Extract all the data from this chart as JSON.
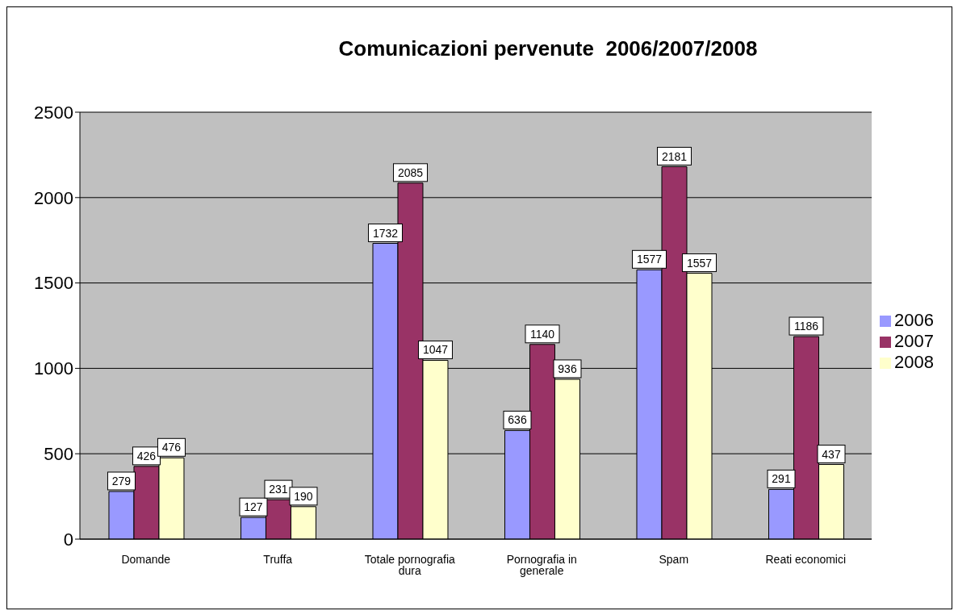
{
  "chart_data": {
    "type": "bar",
    "title": "Comunicazioni pervenute  2006/2007/2008",
    "categories": [
      "Domande",
      "Truffa",
      "Totale pornografia dura",
      "Pornografia in generale",
      "Spam",
      "Reati economici"
    ],
    "series": [
      {
        "name": "2006",
        "color": "#9999ff",
        "values": [
          279,
          127,
          1732,
          636,
          1577,
          291
        ]
      },
      {
        "name": "2007",
        "color": "#993366",
        "values": [
          426,
          231,
          2085,
          1140,
          2181,
          1186
        ]
      },
      {
        "name": "2008",
        "color": "#ffffcc",
        "values": [
          476,
          190,
          1047,
          936,
          1557,
          437
        ]
      }
    ],
    "ylim": [
      0,
      2500
    ],
    "yticks": [
      0,
      500,
      1000,
      1500,
      2000,
      2500
    ],
    "grid": "y",
    "legend": "right",
    "data_labels": true
  }
}
